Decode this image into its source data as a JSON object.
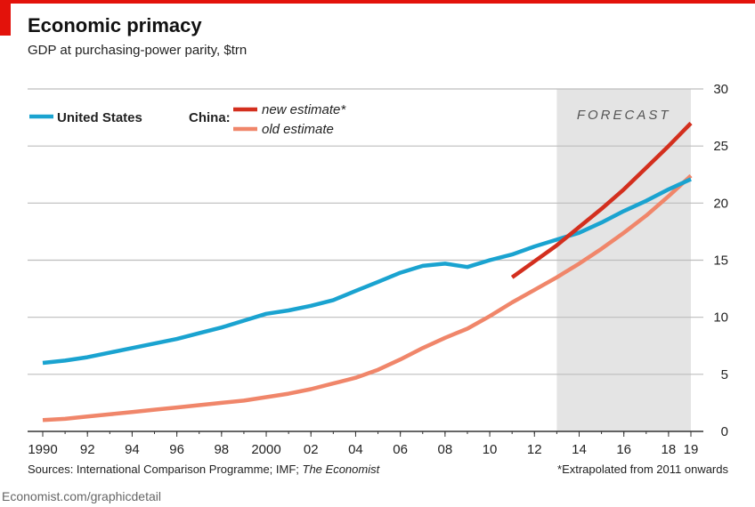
{
  "header": {
    "title": "Economic primacy",
    "subtitle": "GDP at purchasing-power parity, $trn"
  },
  "footer": {
    "source_prefix": "Sources: International Comparison Programme; IMF; ",
    "source_italic": "The Economist",
    "footnote": "*Extrapolated from 2011 onwards",
    "credit": "Economist.com/graphicdetail"
  },
  "colors": {
    "accent": "#e3120b",
    "us": "#1aa3d0",
    "china_new": "#d32f1e",
    "china_old": "#f0866a",
    "forecast_band": "#e4e4e4"
  },
  "chart_data": {
    "type": "line",
    "xlim": [
      1990,
      2019
    ],
    "ylim": [
      0,
      30
    ],
    "y_ticks": [
      0,
      5,
      10,
      15,
      20,
      25,
      30
    ],
    "x_ticks": [
      {
        "value": 1990,
        "label": "1990"
      },
      {
        "value": 1992,
        "label": "92"
      },
      {
        "value": 1994,
        "label": "94"
      },
      {
        "value": 1996,
        "label": "96"
      },
      {
        "value": 1998,
        "label": "98"
      },
      {
        "value": 2000,
        "label": "2000"
      },
      {
        "value": 2002,
        "label": "02"
      },
      {
        "value": 2004,
        "label": "04"
      },
      {
        "value": 2006,
        "label": "06"
      },
      {
        "value": 2008,
        "label": "08"
      },
      {
        "value": 2010,
        "label": "10"
      },
      {
        "value": 2012,
        "label": "12"
      },
      {
        "value": 2014,
        "label": "14"
      },
      {
        "value": 2016,
        "label": "16"
      },
      {
        "value": 2018,
        "label": "18"
      },
      {
        "value": 2019,
        "label": "19"
      }
    ],
    "grid": true,
    "y_axis_side": "right",
    "forecast_band": {
      "from": 2013,
      "to": 2019,
      "label": "FORECAST"
    },
    "legend": {
      "placement": "top-left",
      "us_label": "United States",
      "china_label": "China:",
      "new_label": "new estimate*",
      "old_label": "old estimate"
    },
    "series": [
      {
        "name": "United States",
        "key": "us",
        "x": [
          1990,
          1991,
          1992,
          1993,
          1994,
          1995,
          1996,
          1997,
          1998,
          1999,
          2000,
          2001,
          2002,
          2003,
          2004,
          2005,
          2006,
          2007,
          2008,
          2009,
          2010,
          2011,
          2012,
          2013,
          2014,
          2015,
          2016,
          2017,
          2018,
          2019
        ],
        "y": [
          6.0,
          6.2,
          6.5,
          6.9,
          7.3,
          7.7,
          8.1,
          8.6,
          9.1,
          9.7,
          10.3,
          10.6,
          11.0,
          11.5,
          12.3,
          13.1,
          13.9,
          14.5,
          14.7,
          14.4,
          15.0,
          15.5,
          16.2,
          16.8,
          17.4,
          18.3,
          19.3,
          20.2,
          21.2,
          22.1
        ]
      },
      {
        "name": "new estimate*",
        "key": "china_new",
        "x": [
          2011,
          2012,
          2013,
          2014,
          2015,
          2016,
          2017,
          2018,
          2019
        ],
        "y": [
          13.5,
          14.9,
          16.3,
          17.9,
          19.5,
          21.2,
          23.1,
          25.0,
          27.0
        ]
      },
      {
        "name": "old estimate",
        "key": "china_old",
        "x": [
          1990,
          1991,
          1992,
          1993,
          1994,
          1995,
          1996,
          1997,
          1998,
          1999,
          2000,
          2001,
          2002,
          2003,
          2004,
          2005,
          2006,
          2007,
          2008,
          2009,
          2010,
          2011,
          2012,
          2013,
          2014,
          2015,
          2016,
          2017,
          2018,
          2019
        ],
        "y": [
          1.0,
          1.1,
          1.3,
          1.5,
          1.7,
          1.9,
          2.1,
          2.3,
          2.5,
          2.7,
          3.0,
          3.3,
          3.7,
          4.2,
          4.7,
          5.4,
          6.3,
          7.3,
          8.2,
          9.0,
          10.1,
          11.3,
          12.4,
          13.5,
          14.7,
          16.0,
          17.4,
          18.9,
          20.6,
          22.4
        ]
      }
    ]
  }
}
